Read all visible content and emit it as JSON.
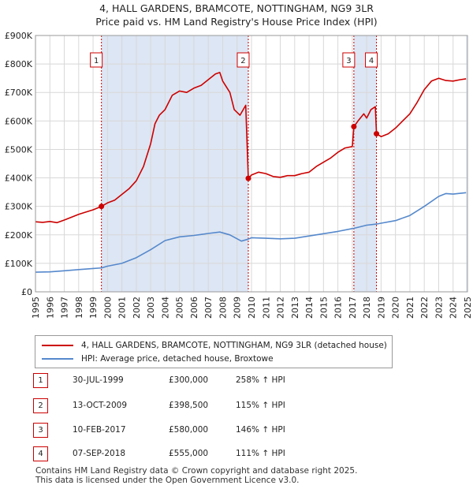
{
  "title_line1": "4, HALL GARDENS, BRAMCOTE, NOTTINGHAM, NG9 3LR",
  "title_line2": "Price paid vs. HM Land Registry's House Price Index (HPI)",
  "colors": {
    "price": "#cc0000",
    "hpi": "#5588cc",
    "band": "#dde6f4",
    "marker": "#cc0000"
  },
  "chart_data": {
    "type": "line",
    "xlim": [
      1995,
      2025
    ],
    "ylim": [
      0,
      900000
    ],
    "y_ticks": [
      0,
      100000,
      200000,
      300000,
      400000,
      500000,
      600000,
      700000,
      800000,
      900000
    ],
    "y_tick_labels": [
      "£0",
      "£100K",
      "£200K",
      "£300K",
      "£400K",
      "£500K",
      "£600K",
      "£700K",
      "£800K",
      "£900K"
    ],
    "x_tick_labels": [
      "1995",
      "1996",
      "1997",
      "1998",
      "1999",
      "2000",
      "2001",
      "2002",
      "2003",
      "2004",
      "2005",
      "2006",
      "2007",
      "2008",
      "2009",
      "2010",
      "2011",
      "2012",
      "2013",
      "2014",
      "2015",
      "2016",
      "2017",
      "2018",
      "2019",
      "2020",
      "2021",
      "2022",
      "2023",
      "2024",
      "2025"
    ],
    "shaded_ranges": [
      [
        1999.58,
        2009.78
      ],
      [
        2017.11,
        2018.68
      ],
      [
        2024.9,
        2025.0
      ]
    ],
    "series": [
      {
        "name": "4, HALL GARDENS, BRAMCOTE, NOTTINGHAM, NG9 3LR (detached house)",
        "color": "#cc0000",
        "points": [
          [
            1995,
            246000
          ],
          [
            1995.5,
            244000
          ],
          [
            1996,
            247000
          ],
          [
            1996.5,
            243000
          ],
          [
            1997,
            252000
          ],
          [
            1997.5,
            262000
          ],
          [
            1998,
            272000
          ],
          [
            1998.5,
            280000
          ],
          [
            1999,
            288000
          ],
          [
            1999.58,
            300000
          ],
          [
            2000,
            312000
          ],
          [
            2000.5,
            322000
          ],
          [
            2001,
            342000
          ],
          [
            2001.5,
            362000
          ],
          [
            2002,
            390000
          ],
          [
            2002.5,
            440000
          ],
          [
            2003,
            520000
          ],
          [
            2003.3,
            590000
          ],
          [
            2003.6,
            620000
          ],
          [
            2004,
            640000
          ],
          [
            2004.5,
            690000
          ],
          [
            2005,
            705000
          ],
          [
            2005.5,
            700000
          ],
          [
            2006,
            715000
          ],
          [
            2006.5,
            725000
          ],
          [
            2007,
            745000
          ],
          [
            2007.5,
            765000
          ],
          [
            2007.8,
            770000
          ],
          [
            2008,
            740000
          ],
          [
            2008.5,
            700000
          ],
          [
            2008.8,
            640000
          ],
          [
            2009.2,
            620000
          ],
          [
            2009.6,
            655000
          ],
          [
            2009.78,
            398500
          ],
          [
            2010,
            410000
          ],
          [
            2010.5,
            420000
          ],
          [
            2011,
            415000
          ],
          [
            2011.5,
            405000
          ],
          [
            2012,
            402000
          ],
          [
            2012.5,
            408000
          ],
          [
            2013,
            408000
          ],
          [
            2013.5,
            415000
          ],
          [
            2014,
            420000
          ],
          [
            2014.5,
            440000
          ],
          [
            2015,
            455000
          ],
          [
            2015.5,
            470000
          ],
          [
            2016,
            490000
          ],
          [
            2016.5,
            505000
          ],
          [
            2017.0,
            510000
          ],
          [
            2017.11,
            580000
          ],
          [
            2017.4,
            600000
          ],
          [
            2017.8,
            625000
          ],
          [
            2018.0,
            610000
          ],
          [
            2018.3,
            640000
          ],
          [
            2018.6,
            650000
          ],
          [
            2018.68,
            555000
          ],
          [
            2019,
            545000
          ],
          [
            2019.5,
            555000
          ],
          [
            2020,
            575000
          ],
          [
            2020.5,
            600000
          ],
          [
            2021,
            625000
          ],
          [
            2021.5,
            665000
          ],
          [
            2022,
            710000
          ],
          [
            2022.5,
            740000
          ],
          [
            2023,
            750000
          ],
          [
            2023.5,
            742000
          ],
          [
            2024,
            740000
          ],
          [
            2024.5,
            745000
          ],
          [
            2024.9,
            748000
          ]
        ]
      },
      {
        "name": "HPI: Average price, detached house, Broxtowe",
        "color": "#5588cc",
        "points": [
          [
            1995,
            69000
          ],
          [
            1996,
            70000
          ],
          [
            1997,
            74000
          ],
          [
            1998,
            78000
          ],
          [
            1999,
            82000
          ],
          [
            1999.58,
            84000
          ],
          [
            2000,
            90000
          ],
          [
            2001,
            100000
          ],
          [
            2002,
            120000
          ],
          [
            2003,
            148000
          ],
          [
            2004,
            180000
          ],
          [
            2005,
            193000
          ],
          [
            2006,
            198000
          ],
          [
            2007,
            205000
          ],
          [
            2007.8,
            210000
          ],
          [
            2008.5,
            200000
          ],
          [
            2009.3,
            178000
          ],
          [
            2009.78,
            185000
          ],
          [
            2010,
            190000
          ],
          [
            2011,
            188000
          ],
          [
            2012,
            186000
          ],
          [
            2013,
            188000
          ],
          [
            2014,
            196000
          ],
          [
            2015,
            204000
          ],
          [
            2016,
            212000
          ],
          [
            2017,
            222000
          ],
          [
            2017.11,
            223000
          ],
          [
            2018,
            234000
          ],
          [
            2018.68,
            238000
          ],
          [
            2019,
            241000
          ],
          [
            2020,
            250000
          ],
          [
            2021,
            268000
          ],
          [
            2022,
            300000
          ],
          [
            2023,
            335000
          ],
          [
            2023.5,
            345000
          ],
          [
            2024,
            343000
          ],
          [
            2024.9,
            348000
          ]
        ]
      }
    ],
    "sales": [
      {
        "label": "1",
        "x": 1999.58,
        "y": 300000
      },
      {
        "label": "2",
        "x": 2009.78,
        "y": 398500
      },
      {
        "label": "3",
        "x": 2017.11,
        "y": 580000
      },
      {
        "label": "4",
        "x": 2018.68,
        "y": 555000
      }
    ]
  },
  "legend": {
    "price_label": "4, HALL GARDENS, BRAMCOTE, NOTTINGHAM, NG9 3LR (detached house)",
    "hpi_label": "HPI: Average price, detached house, Broxtowe"
  },
  "transactions": [
    {
      "num": "1",
      "date": "30-JUL-1999",
      "price": "£300,000",
      "hpi": "258% ↑ HPI"
    },
    {
      "num": "2",
      "date": "13-OCT-2009",
      "price": "£398,500",
      "hpi": "115% ↑ HPI"
    },
    {
      "num": "3",
      "date": "10-FEB-2017",
      "price": "£580,000",
      "hpi": "146% ↑ HPI"
    },
    {
      "num": "4",
      "date": "07-SEP-2018",
      "price": "£555,000",
      "hpi": "111% ↑ HPI"
    }
  ],
  "footer_line1": "Contains HM Land Registry data © Crown copyright and database right 2025.",
  "footer_line2": "This data is licensed under the Open Government Licence v3.0."
}
